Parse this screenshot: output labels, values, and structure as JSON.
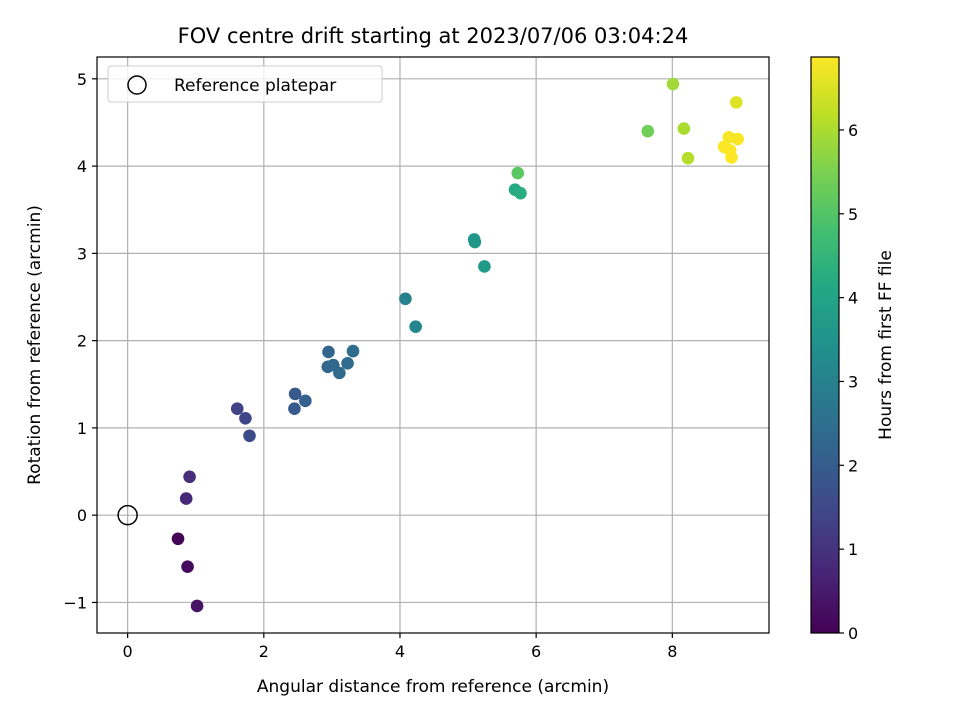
{
  "chart_data": {
    "type": "scatter",
    "title": "FOV centre drift starting at 2023/07/06 03:04:24",
    "xlabel": "Angular distance from reference (arcmin)",
    "ylabel": "Rotation from reference (arcmin)",
    "xlim": [
      -0.45,
      9.42
    ],
    "ylim": [
      -1.35,
      5.25
    ],
    "xticks": [
      0,
      2,
      4,
      6,
      8
    ],
    "yticks": [
      -1,
      0,
      1,
      2,
      3,
      4,
      5
    ],
    "xtick_labels": [
      "0",
      "2",
      "4",
      "6",
      "8"
    ],
    "ytick_labels": [
      "−1",
      "0",
      "1",
      "2",
      "3",
      "4",
      "5"
    ],
    "grid": true,
    "legend": {
      "position": "top-left",
      "entries": [
        "Reference platepar"
      ]
    },
    "reference_point": {
      "x": 0,
      "y": 0,
      "label": "Reference platepar",
      "marker": "open-circle"
    },
    "colorbar": {
      "label": "Hours from first FF file",
      "range": [
        0,
        6.87
      ],
      "ticks": [
        0,
        1,
        2,
        3,
        4,
        5,
        6
      ],
      "tick_labels": [
        "0",
        "1",
        "2",
        "3",
        "4",
        "5",
        "6"
      ],
      "colormap": "viridis"
    },
    "points": [
      {
        "x": 0.74,
        "y": -0.27,
        "hours": 0.05
      },
      {
        "x": 0.88,
        "y": -0.59,
        "hours": 0.2
      },
      {
        "x": 1.02,
        "y": -1.04,
        "hours": 0.35
      },
      {
        "x": 0.86,
        "y": 0.19,
        "hours": 0.75
      },
      {
        "x": 0.91,
        "y": 0.44,
        "hours": 0.9
      },
      {
        "x": 1.61,
        "y": 1.22,
        "hours": 1.35
      },
      {
        "x": 1.73,
        "y": 1.11,
        "hours": 1.45
      },
      {
        "x": 1.79,
        "y": 0.91,
        "hours": 1.55
      },
      {
        "x": 2.46,
        "y": 1.39,
        "hours": 1.9
      },
      {
        "x": 2.45,
        "y": 1.22,
        "hours": 1.95
      },
      {
        "x": 2.61,
        "y": 1.31,
        "hours": 2.05
      },
      {
        "x": 2.95,
        "y": 1.87,
        "hours": 2.2
      },
      {
        "x": 2.94,
        "y": 1.7,
        "hours": 2.25
      },
      {
        "x": 3.02,
        "y": 1.72,
        "hours": 2.3
      },
      {
        "x": 3.11,
        "y": 1.63,
        "hours": 2.35
      },
      {
        "x": 3.23,
        "y": 1.74,
        "hours": 2.4
      },
      {
        "x": 3.31,
        "y": 1.88,
        "hours": 2.45
      },
      {
        "x": 4.08,
        "y": 2.48,
        "hours": 3.0
      },
      {
        "x": 4.23,
        "y": 2.16,
        "hours": 3.1
      },
      {
        "x": 5.09,
        "y": 3.16,
        "hours": 3.55
      },
      {
        "x": 5.1,
        "y": 3.13,
        "hours": 3.6
      },
      {
        "x": 5.24,
        "y": 2.85,
        "hours": 3.7
      },
      {
        "x": 5.69,
        "y": 3.73,
        "hours": 4.15
      },
      {
        "x": 5.77,
        "y": 3.69,
        "hours": 4.25
      },
      {
        "x": 5.73,
        "y": 3.92,
        "hours": 5.1
      },
      {
        "x": 7.64,
        "y": 4.4,
        "hours": 5.35
      },
      {
        "x": 8.01,
        "y": 4.94,
        "hours": 5.9
      },
      {
        "x": 8.17,
        "y": 4.43,
        "hours": 6.0
      },
      {
        "x": 8.23,
        "y": 4.09,
        "hours": 6.1
      },
      {
        "x": 8.94,
        "y": 4.73,
        "hours": 6.55
      },
      {
        "x": 8.83,
        "y": 4.33,
        "hours": 6.8
      },
      {
        "x": 8.96,
        "y": 4.31,
        "hours": 6.82
      },
      {
        "x": 8.76,
        "y": 4.22,
        "hours": 6.84
      },
      {
        "x": 8.85,
        "y": 4.18,
        "hours": 6.85
      },
      {
        "x": 8.87,
        "y": 4.1,
        "hours": 6.87
      }
    ]
  }
}
